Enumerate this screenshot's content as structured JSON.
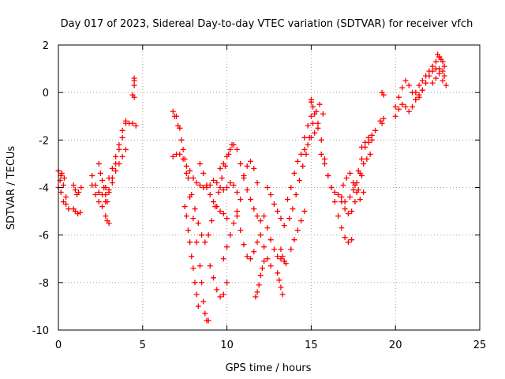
{
  "chart_data": {
    "type": "scatter",
    "title": "Day 017 of 2023, Sidereal Day-to-day VTEC variation (SDTVAR) for receiver vfch",
    "xlabel": "GPS time / hours",
    "ylabel": "SDTVAR / TECUs",
    "xlim": [
      0,
      25
    ],
    "ylim": [
      -10,
      2
    ],
    "xticks": [
      0,
      5,
      10,
      15,
      20,
      25
    ],
    "yticks": [
      2,
      0,
      -2,
      -4,
      -6,
      -8,
      -10
    ],
    "grid": true,
    "marker": "plus",
    "color": "#ff0000",
    "series": [
      {
        "x": [
          0.0,
          0.15,
          0.3,
          0.45,
          0.6
        ],
        "y": [
          -3.3,
          -3.5,
          -3.9,
          -4.4,
          -4.9
        ]
      },
      {
        "x": [
          0.0,
          0.15,
          0.3,
          0.45
        ],
        "y": [
          -4.0,
          -4.2,
          -4.6,
          -4.7
        ]
      },
      {
        "x": [
          0.1,
          0.2,
          0.35
        ],
        "y": [
          -3.7,
          -3.4,
          -3.6
        ]
      },
      {
        "x": [
          0.9,
          1.0,
          1.1,
          1.2,
          1.35
        ],
        "y": [
          -3.9,
          -4.1,
          -4.3,
          -4.2,
          -4.0
        ]
      },
      {
        "x": [
          0.9,
          1.0,
          1.15,
          1.3
        ],
        "y": [
          -4.9,
          -5.0,
          -5.1,
          -5.05
        ]
      },
      {
        "x": [
          2.0,
          2.2,
          2.4,
          2.6,
          2.8,
          3.0,
          3.2,
          3.4,
          3.6,
          3.8,
          4.0
        ],
        "y": [
          -3.9,
          -4.3,
          -4.6,
          -4.8,
          -4.6,
          -4.1,
          -3.6,
          -3.0,
          -2.4,
          -1.9,
          -1.3
        ]
      },
      {
        "x": [
          2.0,
          2.2,
          2.4,
          2.6,
          2.8,
          3.0,
          3.2,
          3.4,
          3.6,
          3.8
        ],
        "y": [
          -3.5,
          -3.9,
          -4.2,
          -4.3,
          -4.0,
          -3.6,
          -3.2,
          -2.7,
          -2.2,
          -1.6
        ]
      },
      {
        "x": [
          2.4,
          2.5,
          2.6,
          2.7,
          2.8,
          2.9
        ],
        "y": [
          -3.0,
          -3.4,
          -3.7,
          -4.0,
          -4.3,
          -4.6
        ]
      },
      {
        "x": [
          2.8,
          2.9,
          3.0
        ],
        "y": [
          -5.2,
          -5.4,
          -5.5
        ]
      },
      {
        "x": [
          3.0,
          3.2,
          3.4,
          3.6,
          3.8,
          4.0
        ],
        "y": [
          -4.2,
          -3.8,
          -3.3,
          -3.0,
          -2.7,
          -2.4
        ]
      },
      {
        "x": [
          4.0,
          4.2,
          4.4,
          4.6
        ],
        "y": [
          -1.2,
          -1.3,
          -1.3,
          -1.4
        ]
      },
      {
        "x": [
          4.5,
          4.5,
          4.5
        ],
        "y": [
          0.6,
          0.5,
          0.3
        ]
      },
      {
        "x": [
          4.4,
          4.5
        ],
        "y": [
          -0.1,
          -0.2
        ]
      },
      {
        "x": [
          6.8,
          7.0,
          7.2,
          7.4,
          7.6,
          7.8,
          8.0,
          8.2,
          8.4,
          8.5,
          8.6,
          8.7,
          8.8,
          8.9
        ],
        "y": [
          -0.8,
          -1.0,
          -1.5,
          -2.4,
          -3.4,
          -4.4,
          -5.3,
          -6.3,
          -7.3,
          -8.0,
          -8.8,
          -9.3,
          -9.6,
          -9.6
        ]
      },
      {
        "x": [
          6.9,
          7.1,
          7.3,
          7.5,
          7.7,
          7.9,
          8.1,
          8.3,
          8.5,
          8.7,
          8.9,
          9.1,
          9.3,
          9.5,
          9.7,
          9.9,
          10.1,
          10.3
        ],
        "y": [
          -1.0,
          -1.4,
          -2.0,
          -2.8,
          -3.6,
          -4.3,
          -4.9,
          -5.5,
          -6.0,
          -6.3,
          -6.0,
          -5.4,
          -4.8,
          -4.2,
          -3.6,
          -3.1,
          -2.6,
          -2.2
        ]
      },
      {
        "x": [
          6.8,
          7.0,
          7.2,
          7.4,
          7.6,
          7.8,
          8.0,
          8.2,
          8.4,
          8.6,
          8.8,
          9.0,
          9.2,
          9.4,
          9.6,
          9.8,
          10.0,
          10.2,
          10.4,
          10.6,
          10.8
        ],
        "y": [
          -2.7,
          -2.6,
          -2.6,
          -2.8,
          -3.1,
          -3.3,
          -3.6,
          -3.8,
          -3.9,
          -4.0,
          -4.0,
          -3.9,
          -3.7,
          -3.8,
          -4.0,
          -4.1,
          -4.0,
          -3.8,
          -3.9,
          -4.2,
          -4.5
        ]
      },
      {
        "x": [
          7.5,
          7.6,
          7.7,
          7.8,
          7.9,
          8.0,
          8.1,
          8.2,
          8.3
        ],
        "y": [
          -4.8,
          -5.2,
          -5.8,
          -6.3,
          -6.9,
          -7.4,
          -8.0,
          -8.5,
          -9.0
        ]
      },
      {
        "x": [
          8.4,
          8.6,
          8.8,
          9.0,
          9.2,
          9.4,
          9.6,
          9.8,
          10.0
        ],
        "y": [
          -3.0,
          -3.4,
          -3.9,
          -4.3,
          -4.6,
          -4.8,
          -5.0,
          -5.1,
          -5.3
        ]
      },
      {
        "x": [
          9.0,
          9.2,
          9.4,
          9.6,
          9.8,
          10.0
        ],
        "y": [
          -7.3,
          -7.8,
          -8.3,
          -8.6,
          -8.5,
          -8.0
        ]
      },
      {
        "x": [
          9.8,
          10.0,
          10.2,
          10.4,
          10.6
        ],
        "y": [
          -7.0,
          -6.5,
          -6.0,
          -5.5,
          -5.0
        ]
      },
      {
        "x": [
          9.6,
          9.8,
          10.0,
          10.2,
          10.4,
          10.6,
          10.8,
          11.0,
          11.2,
          11.4,
          11.6,
          11.8,
          12.0
        ],
        "y": [
          -3.2,
          -3.0,
          -2.7,
          -2.4,
          -2.2,
          -2.4,
          -3.0,
          -3.6,
          -4.1,
          -4.5,
          -4.9,
          -5.2,
          -5.4
        ]
      },
      {
        "x": [
          10.6,
          10.8,
          11.0,
          11.2,
          11.4,
          11.6,
          11.8,
          12.0,
          12.2,
          12.4,
          12.6
        ],
        "y": [
          -5.2,
          -5.8,
          -6.4,
          -6.9,
          -7.0,
          -6.7,
          -6.3,
          -6.0,
          -6.5,
          -7.0,
          -7.3
        ]
      },
      {
        "x": [
          11.0,
          11.2,
          11.4,
          11.6,
          11.8
        ],
        "y": [
          -3.5,
          -3.1,
          -2.9,
          -3.2,
          -3.8
        ]
      },
      {
        "x": [
          11.7,
          11.8,
          11.9,
          12.0,
          12.1,
          12.2
        ],
        "y": [
          -8.6,
          -8.4,
          -8.1,
          -7.7,
          -7.4,
          -7.1
        ]
      },
      {
        "x": [
          12.2,
          12.4,
          12.6,
          12.8,
          13.0,
          13.2,
          13.4
        ],
        "y": [
          -5.2,
          -5.7,
          -6.2,
          -6.6,
          -6.9,
          -7.0,
          -7.1
        ]
      },
      {
        "x": [
          12.4,
          12.6,
          12.8,
          13.0,
          13.2,
          13.4
        ],
        "y": [
          -4.0,
          -4.3,
          -4.7,
          -5.0,
          -5.3,
          -5.6
        ]
      },
      {
        "x": [
          13.0,
          13.1,
          13.2,
          13.3
        ],
        "y": [
          -7.6,
          -7.9,
          -8.2,
          -8.5
        ]
      },
      {
        "x": [
          13.2,
          13.3,
          13.4,
          13.5
        ],
        "y": [
          -6.6,
          -6.9,
          -7.1,
          -7.2
        ]
      },
      {
        "x": [
          13.6,
          13.8,
          14.0,
          14.2,
          14.4,
          14.6,
          14.8,
          15.0,
          15.2,
          15.4
        ],
        "y": [
          -4.5,
          -4.0,
          -3.4,
          -2.9,
          -2.6,
          -2.4,
          -2.2,
          -1.9,
          -1.7,
          -1.5
        ]
      },
      {
        "x": [
          13.7,
          13.9,
          14.1,
          14.3,
          14.5,
          14.7,
          14.9,
          15.1,
          15.3,
          15.5,
          15.7
        ],
        "y": [
          -5.3,
          -4.9,
          -4.3,
          -3.7,
          -3.1,
          -2.6,
          -1.9,
          -1.3,
          -0.8,
          -0.5,
          -0.9
        ]
      },
      {
        "x": [
          13.8,
          14.0,
          14.2,
          14.4,
          14.6
        ],
        "y": [
          -6.6,
          -6.2,
          -5.8,
          -5.4,
          -5.0
        ]
      },
      {
        "x": [
          14.6,
          14.8,
          15.0,
          15.2,
          15.4,
          15.6,
          15.8,
          16.0,
          16.2,
          16.4,
          16.6,
          16.8,
          17.0
        ],
        "y": [
          -1.9,
          -1.4,
          -1.0,
          -0.9,
          -1.3,
          -2.0,
          -2.8,
          -3.5,
          -4.0,
          -4.2,
          -4.3,
          -4.4,
          -4.6
        ]
      },
      {
        "x": [
          15.0,
          15.0,
          15.1
        ],
        "y": [
          -0.3,
          -0.4,
          -0.6
        ]
      },
      {
        "x": [
          15.6,
          15.8,
          16.0,
          16.2,
          16.4,
          16.6,
          16.8,
          17.0,
          17.2,
          17.4
        ],
        "y": [
          -2.6,
          -3.0,
          -3.5,
          -4.0,
          -4.6,
          -5.2,
          -5.7,
          -6.1,
          -6.3,
          -6.2
        ]
      },
      {
        "x": [
          16.8,
          17.0,
          17.2,
          17.4,
          17.6,
          17.8,
          18.0
        ],
        "y": [
          -4.6,
          -4.9,
          -5.1,
          -5.0,
          -4.6,
          -4.1,
          -3.5
        ]
      },
      {
        "x": [
          16.9,
          17.1,
          17.3,
          17.5,
          17.7,
          17.9,
          18.1
        ],
        "y": [
          -3.9,
          -3.6,
          -3.4,
          -3.8,
          -4.2,
          -4.5,
          -4.2
        ]
      },
      {
        "x": [
          17.3,
          17.5,
          17.7,
          17.9,
          18.1,
          18.3,
          18.5
        ],
        "y": [
          -4.4,
          -4.1,
          -3.8,
          -3.4,
          -3.0,
          -2.8,
          -2.6
        ]
      },
      {
        "x": [
          17.6,
          17.8,
          18.0,
          18.2,
          18.4,
          18.6
        ],
        "y": [
          -3.9,
          -3.3,
          -2.8,
          -2.3,
          -2.1,
          -2.0
        ]
      },
      {
        "x": [
          18.0,
          18.2,
          18.4,
          18.6,
          18.8
        ],
        "y": [
          -2.3,
          -2.1,
          -1.9,
          -1.8,
          -1.6
        ]
      },
      {
        "x": [
          19.1,
          19.2,
          19.3
        ],
        "y": [
          -1.2,
          -1.3,
          -1.1
        ]
      },
      {
        "x": [
          19.2,
          19.3
        ],
        "y": [
          0.0,
          -0.1
        ]
      },
      {
        "x": [
          20.0,
          20.2,
          20.4,
          20.6,
          20.8,
          21.0,
          21.2,
          21.4,
          21.6,
          21.8,
          22.0,
          22.2,
          22.4,
          22.6,
          22.8,
          23.0
        ],
        "y": [
          -0.6,
          -0.2,
          0.2,
          0.5,
          0.3,
          0.0,
          -0.3,
          -0.2,
          0.1,
          0.4,
          0.7,
          0.9,
          1.0,
          0.8,
          0.5,
          0.3
        ]
      },
      {
        "x": [
          20.0,
          20.2,
          20.4,
          20.6,
          20.8,
          21.0,
          21.2,
          21.4,
          21.6
        ],
        "y": [
          -1.0,
          -0.7,
          -0.5,
          -0.6,
          -0.8,
          -0.6,
          -0.3,
          -0.1,
          0.1
        ]
      },
      {
        "x": [
          21.2,
          21.4,
          21.6,
          21.8,
          22.0,
          22.2,
          22.4,
          22.6,
          22.8,
          22.9
        ],
        "y": [
          0.0,
          0.3,
          0.5,
          0.7,
          0.9,
          1.1,
          1.3,
          1.5,
          1.3,
          1.1
        ]
      },
      {
        "x": [
          22.2,
          22.4,
          22.6,
          22.8,
          22.9
        ],
        "y": [
          0.4,
          0.6,
          1.0,
          0.9,
          0.7
        ]
      },
      {
        "x": [
          22.5,
          22.6,
          22.7
        ],
        "y": [
          1.6,
          1.5,
          1.4
        ]
      }
    ]
  }
}
